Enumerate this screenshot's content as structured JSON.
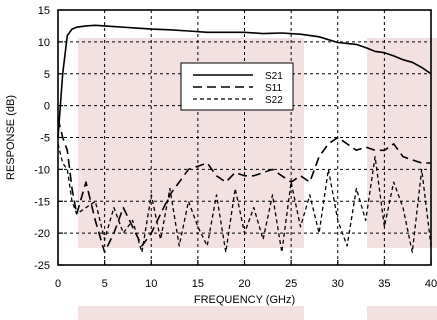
{
  "chart_data": {
    "type": "line",
    "title": "",
    "xlabel": "FREQUENCY (GHz)",
    "ylabel": "RESPONSE (dB)",
    "xlim": [
      0,
      40
    ],
    "ylim": [
      -25,
      15
    ],
    "xticks": [
      0,
      5,
      10,
      15,
      20,
      25,
      30,
      35,
      40
    ],
    "yticks": [
      -25,
      -20,
      -15,
      -10,
      -5,
      0,
      5,
      10,
      15
    ],
    "grid": true,
    "legend_position": "center",
    "series": [
      {
        "name": "S21",
        "style": "solid",
        "x": [
          0,
          0.5,
          1,
          1.5,
          2,
          3,
          4,
          5,
          6,
          8,
          10,
          12,
          14,
          16,
          18,
          20,
          22,
          24,
          26,
          28,
          30,
          32,
          33,
          34,
          35,
          36,
          37,
          38,
          39,
          40
        ],
        "y": [
          -5,
          5,
          11,
          12,
          12.3,
          12.5,
          12.6,
          12.5,
          12.4,
          12.2,
          12.0,
          11.9,
          11.7,
          11.5,
          11.5,
          11.5,
          11.3,
          11.4,
          11.2,
          10.8,
          9.9,
          9.6,
          9.1,
          8.5,
          8.3,
          7.8,
          7.2,
          6.8,
          6.0,
          5.0
        ]
      },
      {
        "name": "S11",
        "style": "long-dash",
        "x": [
          0,
          0.5,
          1,
          1.5,
          2,
          3,
          4,
          5,
          6,
          7,
          8,
          9,
          10,
          11,
          12,
          13,
          14,
          15,
          16,
          17,
          18,
          19,
          20,
          21,
          22,
          23,
          24,
          25,
          26,
          27,
          28,
          29,
          30,
          31,
          32,
          33,
          34,
          35,
          36,
          37,
          38,
          39,
          40
        ],
        "y": [
          -2,
          -5,
          -7,
          -13,
          -17,
          -12,
          -18,
          -23,
          -20,
          -16,
          -19,
          -22,
          -20,
          -17,
          -14,
          -12,
          -10,
          -9.5,
          -9,
          -11,
          -12,
          -10.5,
          -11,
          -11,
          -10.5,
          -10,
          -11,
          -12,
          -11,
          -12,
          -8,
          -6,
          -5,
          -6,
          -7,
          -6.5,
          -7,
          -7,
          -6,
          -8,
          -8.5,
          -9,
          -9
        ]
      },
      {
        "name": "S22",
        "style": "short-dash",
        "x": [
          0,
          0.5,
          1,
          1.5,
          2,
          3,
          4,
          5,
          6,
          7,
          8,
          9,
          10,
          11,
          12,
          13,
          14,
          15,
          16,
          17,
          18,
          19,
          20,
          21,
          22,
          23,
          24,
          25,
          26,
          27,
          28,
          29,
          30,
          31,
          32,
          33,
          34,
          35,
          36,
          37,
          38,
          39,
          40
        ],
        "y": [
          -6,
          -9,
          -10,
          -15,
          -17,
          -16,
          -15,
          -21,
          -16,
          -20,
          -18,
          -23,
          -14,
          -21,
          -13,
          -22,
          -15,
          -19,
          -22,
          -14,
          -23,
          -13,
          -20,
          -16,
          -21,
          -14,
          -23,
          -12,
          -19,
          -14,
          -20,
          -10,
          -18,
          -22,
          -13,
          -18,
          -8,
          -19,
          -12,
          -16,
          -23,
          -10,
          -22
        ]
      }
    ]
  }
}
